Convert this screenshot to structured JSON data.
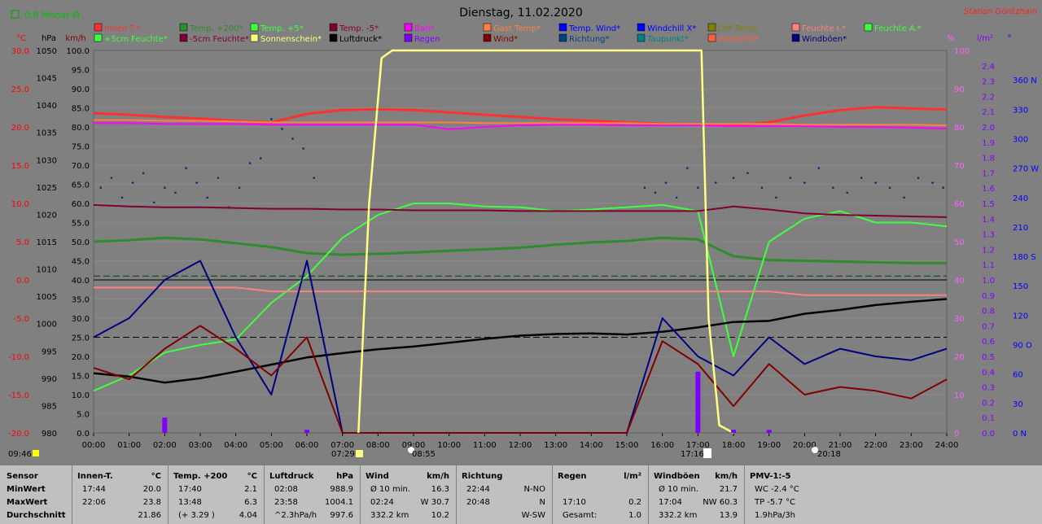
{
  "header": {
    "title": "Dienstag, 11.02.2020",
    "station": "Station Göritzhain",
    "month_avg": "0.8 Monat-Ø"
  },
  "legend": [
    [
      "Innen-T.*",
      "#ff3030"
    ],
    [
      "Temp. +200*",
      "#2e8b2e"
    ],
    [
      "Temp. +5*",
      "#40ff40"
    ],
    [
      "Temp. -5*",
      "#800030"
    ],
    [
      "Bad*",
      "#ff00ff"
    ],
    [
      "Gast Temp*",
      "#ff8040"
    ],
    [
      "Temp. Wind*",
      "#0000ff"
    ],
    [
      "Windchill X*",
      "#0000ff"
    ],
    [
      "Diff Temp.",
      "#808000"
    ],
    [
      "Feuchte I.*",
      "#ff8080"
    ],
    [
      "Feuchte A.*",
      "#40ff40"
    ],
    [
      "+5cm Feuchte*",
      "#40ff40"
    ],
    [
      "-5cm Feuchte*",
      "#800040"
    ],
    [
      "Sonnenschein*",
      "#ffff80"
    ],
    [
      "Luftdruck*",
      "#000000"
    ],
    [
      "Regen",
      "#8000ff"
    ],
    [
      "Wind*",
      "#800000"
    ],
    [
      "Richtung*",
      "#004080"
    ],
    [
      "Taupunkt*",
      "#008080"
    ],
    [
      "Windchill*",
      "#ff6040"
    ],
    [
      "Windböen*",
      "#000080"
    ]
  ],
  "axes": {
    "unit_c": "°C",
    "unit_hpa": "hPa",
    "unit_kmh": "km/h",
    "unit_pct": "%",
    "unit_lm2": "l/m²",
    "unit_deg": "°",
    "temp_ticks": [
      "30.0",
      "25.0",
      "20.0",
      "15.0",
      "10.0",
      "5.0",
      "0.0",
      "-5.0",
      "-10.0",
      "-15.0",
      "-20.0"
    ],
    "pressure_ticks": [
      "1050",
      "1045",
      "1040",
      "1035",
      "1030",
      "1025",
      "1020",
      "1015",
      "1010",
      "1005",
      "1000",
      "995",
      "990",
      "985",
      "980"
    ],
    "kmh_ticks": [
      "100.0",
      "95.0",
      "90.0",
      "85.0",
      "80.0",
      "75.0",
      "70.0",
      "65.0",
      "60.0",
      "55.0",
      "50.0",
      "45.0",
      "40.0",
      "35.0",
      "30.0",
      "25.0",
      "20.0",
      "15.0",
      "10.0",
      "5.0",
      "0.0"
    ],
    "pct_ticks": [
      "100",
      "90",
      "80",
      "70",
      "60",
      "50",
      "40",
      "30",
      "20",
      "10",
      "0"
    ],
    "rain_ticks": [
      "2.4",
      "2.3",
      "2.2",
      "2.1",
      "2.0",
      "1.9",
      "1.8",
      "1.7",
      "1.6",
      "1.5",
      "1.4",
      "1.3",
      "1.2",
      "1.1",
      "1.0",
      "0.9",
      "0.8",
      "0.7",
      "0.6",
      "0.5",
      "0.4",
      "0.3",
      "0.2",
      "0.1",
      "0.0"
    ],
    "dir_ticks": [
      "360 N",
      "330",
      "300",
      "270 W",
      "240",
      "210",
      "180 S",
      "150",
      "120",
      "90 O",
      "60",
      "30",
      "0    N"
    ],
    "time_ticks": [
      "00:00",
      "01:00",
      "02:00",
      "03:00",
      "04:00",
      "05:00",
      "06:00",
      "07:00",
      "08:00",
      "09:00",
      "10:00",
      "11:00",
      "12:00",
      "13:00",
      "14:00",
      "15:00",
      "16:00",
      "17:00",
      "18:00",
      "19:00",
      "20:00",
      "21:00",
      "22:00",
      "23:00",
      "24:00"
    ]
  },
  "markers": {
    "moonrise": "09:46",
    "sunrise": "07:29",
    "sun_high": "08:55",
    "sunset": "17:16",
    "moonset": "20:18"
  },
  "chart_data": {
    "type": "line",
    "title": "Dienstag, 11.02.2020",
    "x_hours": [
      0,
      1,
      2,
      3,
      4,
      5,
      6,
      7,
      8,
      9,
      10,
      11,
      12,
      13,
      14,
      15,
      16,
      17,
      18,
      19,
      20,
      21,
      22,
      23,
      24
    ],
    "series": [
      {
        "name": "Innen-T.*",
        "unit": "°C",
        "color": "#ff3030",
        "values": [
          21.8,
          21.6,
          21.3,
          21.1,
          20.8,
          20.6,
          21.7,
          22.2,
          22.3,
          22.2,
          21.9,
          21.6,
          21.3,
          21.0,
          20.8,
          20.6,
          20.4,
          20.3,
          20.2,
          20.6,
          21.5,
          22.2,
          22.6,
          22.4,
          22.3
        ]
      },
      {
        "name": "Bad*",
        "unit": "°C",
        "color": "#ff00ff",
        "values": [
          20.5,
          20.5,
          20.4,
          20.4,
          20.4,
          20.3,
          20.3,
          20.3,
          20.3,
          20.3,
          19.7,
          20.0,
          20.2,
          20.3,
          20.3,
          20.2,
          20.2,
          20.2,
          20.1,
          20.1,
          20.1,
          20.0,
          20.0,
          19.9,
          19.8
        ]
      },
      {
        "name": "Gast Temp*",
        "unit": "°C",
        "color": "#ff8040",
        "values": [
          20.9,
          20.9,
          20.8,
          20.8,
          20.7,
          20.6,
          20.6,
          20.6,
          20.6,
          20.6,
          20.6,
          20.5,
          20.5,
          20.5,
          20.5,
          20.5,
          20.4,
          20.4,
          20.4,
          20.4,
          20.3,
          20.3,
          20.3,
          20.3,
          20.2
        ]
      },
      {
        "name": "Temp. +200*",
        "unit": "°C",
        "color": "#2e8b2e",
        "values": [
          5.0,
          5.2,
          5.5,
          5.3,
          4.8,
          4.3,
          3.5,
          3.3,
          3.4,
          3.6,
          3.8,
          4.0,
          4.2,
          4.6,
          4.9,
          5.1,
          5.5,
          5.3,
          3.1,
          2.6,
          2.5,
          2.4,
          2.3,
          2.2,
          2.2
        ]
      },
      {
        "name": "Temp. +5*",
        "unit": "°C",
        "color": "#40ff40",
        "values": [
          -14.5,
          -12.5,
          -9.5,
          -8.5,
          -7.8,
          -3.0,
          0.5,
          5.5,
          8.5,
          10.0,
          10.0,
          9.6,
          9.5,
          9.0,
          9.2,
          9.5,
          9.8,
          9.0,
          -10.0,
          5.0,
          8.0,
          9.0,
          7.5,
          7.5,
          7.0
        ]
      },
      {
        "name": "Temp. -5*",
        "unit": "°C",
        "color": "#800030",
        "values": [
          9.8,
          9.6,
          9.5,
          9.5,
          9.4,
          9.3,
          9.3,
          9.2,
          9.2,
          9.1,
          9.1,
          9.1,
          9.0,
          9.0,
          9.0,
          9.0,
          9.0,
          9.0,
          9.6,
          9.2,
          8.7,
          8.5,
          8.4,
          8.3,
          8.2
        ]
      },
      {
        "name": "Luftdruck*",
        "unit": "hPa",
        "color": "#000000",
        "values": [
          990.9,
          990.3,
          989.2,
          990.0,
          991.2,
          992.5,
          993.8,
          994.6,
          995.3,
          995.8,
          996.5,
          997.2,
          997.8,
          998.1,
          998.2,
          998.0,
          998.5,
          999.3,
          1000.3,
          1000.5,
          1001.8,
          1002.5,
          1003.4,
          1004.0,
          1004.5
        ]
      },
      {
        "name": "Feuchte I.*",
        "unit": "%",
        "color": "#ff8080",
        "values": [
          38,
          38,
          38,
          38,
          38,
          37,
          37,
          37,
          37,
          37,
          37,
          37,
          37,
          37,
          37,
          37,
          37,
          37,
          37,
          37,
          36,
          36,
          36,
          36,
          36
        ]
      },
      {
        "name": "Windböen*",
        "unit": "km/h",
        "color": "#000080",
        "values": [
          25,
          30,
          40,
          45,
          25,
          10,
          45,
          0,
          0,
          0,
          0,
          0,
          0,
          0,
          0,
          0,
          30,
          20,
          15,
          25,
          18,
          22,
          20,
          19,
          22
        ]
      },
      {
        "name": "Wind*",
        "unit": "km/h",
        "color": "#800000",
        "values": [
          17,
          14,
          22,
          28,
          22,
          15,
          25,
          0,
          0,
          0,
          0,
          0,
          0,
          0,
          0,
          0,
          24,
          18,
          7,
          18,
          10,
          12,
          11,
          9,
          14
        ]
      },
      {
        "name": "Sonnenschein*",
        "unit": "%",
        "color": "#ffff80",
        "values": [
          0,
          0,
          0,
          0,
          0,
          0,
          0,
          0,
          100,
          100,
          100,
          100,
          100,
          100,
          100,
          100,
          100,
          100,
          0,
          0,
          0,
          0,
          0,
          0,
          0
        ]
      },
      {
        "name": "Regen",
        "unit": "l/m²",
        "color": "#8000ff",
        "values": [
          0,
          0,
          0.1,
          0,
          0,
          0,
          0.02,
          0,
          0,
          0,
          0,
          0,
          0,
          0,
          0,
          0,
          0,
          0.4,
          0.02,
          0.02,
          0,
          0,
          0,
          0,
          0
        ]
      }
    ],
    "scatter": {
      "name": "Richtung*",
      "unit": "°",
      "color": "#003080",
      "x": [
        0.2,
        0.5,
        0.8,
        1.1,
        1.4,
        1.7,
        2.0,
        2.3,
        2.6,
        2.9,
        3.2,
        3.5,
        3.8,
        4.1,
        4.4,
        4.7,
        5.0,
        5.3,
        5.6,
        5.9,
        6.2,
        15.5,
        15.8,
        16.1,
        16.4,
        16.7,
        17.0,
        17.5,
        18.0,
        18.4,
        18.8,
        19.2,
        19.6,
        20.0,
        20.4,
        20.8,
        21.2,
        21.6,
        22.0,
        22.4,
        22.8,
        23.2,
        23.6,
        23.9
      ],
      "values": [
        250,
        260,
        240,
        255,
        265,
        235,
        250,
        245,
        270,
        255,
        240,
        260,
        230,
        250,
        275,
        280,
        320,
        310,
        300,
        290,
        260,
        250,
        245,
        255,
        240,
        270,
        250,
        255,
        260,
        265,
        250,
        240,
        260,
        255,
        270,
        250,
        245,
        260,
        255,
        250,
        240,
        260,
        255,
        250
      ]
    }
  },
  "stats": {
    "s1": {
      "h": "Sensor",
      "r1": "MinWert",
      "r2": "MaxWert",
      "r3": "Durchschnitt"
    },
    "s2": {
      "h": "Innen-T.",
      "u": "°C",
      "r1a": "17:44",
      "r1b": "20.0",
      "r2a": "22:06",
      "r2b": "23.8",
      "r3a": "",
      "r3b": "21.86"
    },
    "s3": {
      "h": "Temp. +200",
      "u": "°C",
      "r1a": "17:40",
      "r1b": "2.1",
      "r2a": "13:48",
      "r2b": "6.3",
      "r3a": "(+ 3.29 )",
      "r3b": "4.04"
    },
    "s4": {
      "h": "Luftdruck",
      "u": "hPa",
      "r1a": "02:08",
      "r1b": "988.9",
      "r2a": "23:58",
      "r2b": "1004.1",
      "r3a": "^2.3hPa/h",
      "r3b": "997.6"
    },
    "s5": {
      "h": "Wind",
      "u": "km/h",
      "r1a": "Ø 10 min.",
      "r1b": "16.3",
      "r2a": "02:24",
      "r2b": "W 30.7",
      "r3a": "332.2 km",
      "r3b": "10.2"
    },
    "s6": {
      "h": "Richtung",
      "u": "",
      "r1a": "22:44",
      "r1b": "N-NO",
      "r2a": "20:48",
      "r2b": "N",
      "r3a": "",
      "r3b": "W-SW"
    },
    "s7": {
      "h": "Regen",
      "u": "l/m²",
      "r1a": "",
      "r1b": "",
      "r2a": "17:10",
      "r2b": "0.2",
      "r3a": "Gesamt:",
      "r3b": "1.0"
    },
    "s8": {
      "h": "Windböen",
      "u": "km/h",
      "r1a": "Ø 10 min.",
      "r1b": "21.7",
      "r2a": "17:04",
      "r2b": "NW 60.3",
      "r3a": "332.2 km",
      "r3b": "13.9"
    },
    "s9": {
      "h": "PMV-1:-5",
      "u": "",
      "r1a": "WC -2.4 °C",
      "r1b": "",
      "r2a": "TP -5.7 °C",
      "r2b": "",
      "r3a": "1.9hPa/3h",
      "r3b": ""
    }
  }
}
